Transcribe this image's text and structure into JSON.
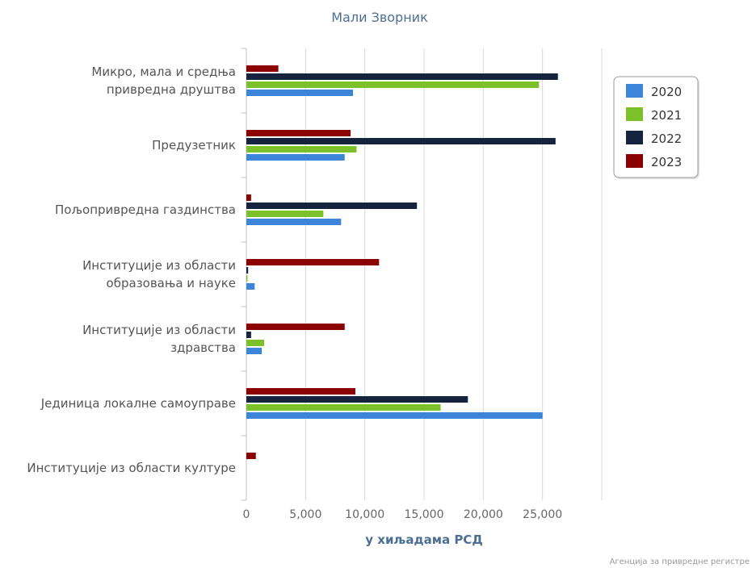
{
  "chart_data": {
    "type": "bar",
    "orientation": "horizontal",
    "title": "Мали Зворник",
    "xlabel": "у хиљадама РСД",
    "credit": "Агенција за привредне регистре",
    "categories": [
      "Микро, мала и средња привредна друштва",
      "Предузетник",
      "Пољопривредна газдинства",
      "Институције из области образовања и науке",
      "Институције из области здравства",
      "Јединица локалне самоуправе",
      "Институције из области културе"
    ],
    "category_label_lines": [
      [
        "Микро, мала и средња",
        "привредна друштва"
      ],
      [
        "Предузетник"
      ],
      [
        "Пољопривредна газдинства"
      ],
      [
        "Институције из области",
        "образовања и науке"
      ],
      [
        "Институције из области",
        "здравства"
      ],
      [
        "Јединица локалне самоуправе"
      ],
      [
        "Институције из области културе"
      ]
    ],
    "series": [
      {
        "name": "2020",
        "color": "#3d85d8",
        "values": [
          9000,
          8300,
          8000,
          700,
          1300,
          25000,
          0
        ]
      },
      {
        "name": "2021",
        "color": "#7cc12a",
        "values": [
          24700,
          9300,
          6500,
          100,
          1500,
          16400,
          0
        ]
      },
      {
        "name": "2022",
        "color": "#14243e",
        "values": [
          26300,
          26100,
          14400,
          150,
          400,
          18700,
          0
        ]
      },
      {
        "name": "2023",
        "color": "#8b0000",
        "values": [
          2700,
          8800,
          400,
          11200,
          8300,
          9200,
          800
        ]
      }
    ],
    "xlim": [
      0,
      30000
    ],
    "xticks": [
      0,
      5000,
      10000,
      15000,
      20000,
      25000
    ],
    "xtick_labels": [
      "0",
      "5,000",
      "10,000",
      "15,000",
      "20,000",
      "25,000"
    ],
    "grid": true,
    "legend_position": "top-right"
  }
}
